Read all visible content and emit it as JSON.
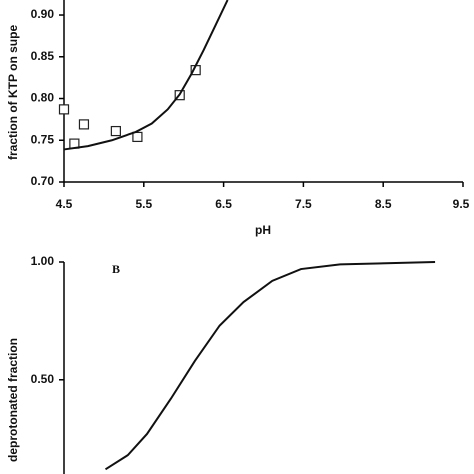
{
  "chart_data": [
    {
      "type": "scatter-line",
      "x_label": "pH",
      "y_label": "fraction of KTP on supe",
      "xlim": [
        4.5,
        9.5
      ],
      "xticks": [
        4.5,
        5.5,
        6.5,
        7.5,
        8.5,
        9.5
      ],
      "ylim": [
        0.7,
        0.918
      ],
      "yticks": [
        {
          "value": 0.7,
          "label": "0.70"
        },
        {
          "value": 0.75,
          "label": "0.75"
        },
        {
          "value": 0.8,
          "label": "0.80"
        },
        {
          "value": 0.85,
          "label": "0.85"
        },
        {
          "value": 0.9,
          "label": "0.90"
        }
      ],
      "series": [
        {
          "kind": "points",
          "color": "#222222",
          "x": [
            4.5,
            4.63,
            4.75,
            5.15,
            5.42,
            5.95,
            6.15
          ],
          "values": [
            0.787,
            0.746,
            0.769,
            0.761,
            0.754,
            0.804,
            0.834
          ]
        },
        {
          "kind": "line",
          "color": "#111111",
          "x": [
            4.5,
            4.8,
            5.1,
            5.4,
            5.6,
            5.8,
            5.95,
            6.1,
            6.25,
            6.4,
            6.55
          ],
          "values": [
            0.739,
            0.743,
            0.75,
            0.76,
            0.77,
            0.787,
            0.805,
            0.83,
            0.858,
            0.888,
            0.918
          ]
        }
      ]
    },
    {
      "type": "line",
      "y_label": "deprotonated fraction",
      "annotation": "B",
      "xlim": [
        4.5,
        9.5
      ],
      "ylim": [
        0.1,
        1.0
      ],
      "yticks": [
        {
          "value": 0.5,
          "label": "0.50"
        },
        {
          "value": 1.0,
          "label": "1.00"
        }
      ],
      "series": [
        {
          "color": "#111111",
          "x": [
            5.02,
            5.3,
            5.54,
            5.84,
            6.14,
            6.45,
            6.75,
            7.11,
            7.47,
            7.96,
            9.15
          ],
          "values": [
            0.12,
            0.18,
            0.27,
            0.42,
            0.58,
            0.73,
            0.83,
            0.92,
            0.97,
            0.99,
            1.0
          ]
        }
      ]
    }
  ]
}
